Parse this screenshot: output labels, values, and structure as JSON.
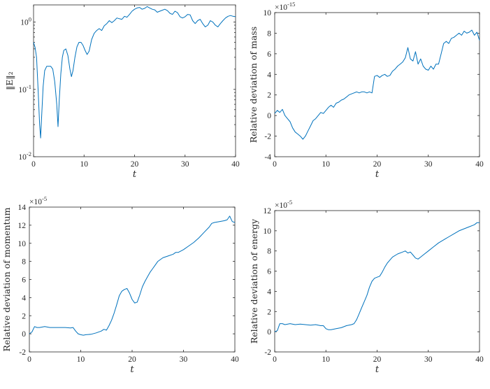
{
  "chart_data": [
    {
      "type": "line",
      "name": "E-norm",
      "ylabel": "‖E‖₂",
      "xlabel": "t",
      "yscale": "log",
      "xlim": [
        0,
        40
      ],
      "ylim": [
        0.01,
        1.8
      ],
      "xticks": [
        0,
        10,
        20,
        30,
        40
      ],
      "yticks": [
        {
          "v": 0.01,
          "base": "10",
          "exp": "-2"
        },
        {
          "v": 0.1,
          "base": "10",
          "exp": "-1"
        },
        {
          "v": 1,
          "base": "10",
          "exp": "0"
        }
      ],
      "exponent": "",
      "color": "#0072bd",
      "points": [
        [
          0,
          0.5
        ],
        [
          0.3,
          0.42
        ],
        [
          0.6,
          0.3
        ],
        [
          0.9,
          0.1
        ],
        [
          1.2,
          0.03
        ],
        [
          1.4,
          0.019
        ],
        [
          1.6,
          0.04
        ],
        [
          1.9,
          0.11
        ],
        [
          2.2,
          0.19
        ],
        [
          2.6,
          0.22
        ],
        [
          3.0,
          0.22
        ],
        [
          3.4,
          0.22
        ],
        [
          3.8,
          0.2
        ],
        [
          4.2,
          0.13
        ],
        [
          4.6,
          0.06
        ],
        [
          4.85,
          0.028
        ],
        [
          5.1,
          0.07
        ],
        [
          5.4,
          0.17
        ],
        [
          5.7,
          0.3
        ],
        [
          6.0,
          0.38
        ],
        [
          6.4,
          0.4
        ],
        [
          6.8,
          0.32
        ],
        [
          7.2,
          0.2
        ],
        [
          7.5,
          0.155
        ],
        [
          7.8,
          0.19
        ],
        [
          8.2,
          0.3
        ],
        [
          8.6,
          0.43
        ],
        [
          9.0,
          0.5
        ],
        [
          9.4,
          0.5
        ],
        [
          9.8,
          0.45
        ],
        [
          10.2,
          0.38
        ],
        [
          10.6,
          0.33
        ],
        [
          11.0,
          0.37
        ],
        [
          11.5,
          0.55
        ],
        [
          12.0,
          0.68
        ],
        [
          12.5,
          0.75
        ],
        [
          13.0,
          0.8
        ],
        [
          13.5,
          0.75
        ],
        [
          14.0,
          0.88
        ],
        [
          14.5,
          0.95
        ],
        [
          15.0,
          1.05
        ],
        [
          15.5,
          0.98
        ],
        [
          16.0,
          1.05
        ],
        [
          16.5,
          1.15
        ],
        [
          17.0,
          1.12
        ],
        [
          17.5,
          1.1
        ],
        [
          18.0,
          1.22
        ],
        [
          18.5,
          1.18
        ],
        [
          19.0,
          1.3
        ],
        [
          19.5,
          1.45
        ],
        [
          20.0,
          1.55
        ],
        [
          20.5,
          1.62
        ],
        [
          21.0,
          1.65
        ],
        [
          21.5,
          1.55
        ],
        [
          22.0,
          1.6
        ],
        [
          22.5,
          1.7
        ],
        [
          23.0,
          1.62
        ],
        [
          23.5,
          1.55
        ],
        [
          24.0,
          1.52
        ],
        [
          24.5,
          1.4
        ],
        [
          25.0,
          1.45
        ],
        [
          25.5,
          1.5
        ],
        [
          26.0,
          1.55
        ],
        [
          26.5,
          1.48
        ],
        [
          27.0,
          1.35
        ],
        [
          27.5,
          1.3
        ],
        [
          28.0,
          1.45
        ],
        [
          28.5,
          1.38
        ],
        [
          29.0,
          1.2
        ],
        [
          29.5,
          1.15
        ],
        [
          30.0,
          1.2
        ],
        [
          30.5,
          1.3
        ],
        [
          31.0,
          1.28
        ],
        [
          31.5,
          1.05
        ],
        [
          32.0,
          0.95
        ],
        [
          32.5,
          1.05
        ],
        [
          33.0,
          1.1
        ],
        [
          33.5,
          0.95
        ],
        [
          34.0,
          0.85
        ],
        [
          34.5,
          0.9
        ],
        [
          35.0,
          1.05
        ],
        [
          35.5,
          1.0
        ],
        [
          36.0,
          0.9
        ],
        [
          36.5,
          0.85
        ],
        [
          37.0,
          0.95
        ],
        [
          37.5,
          1.05
        ],
        [
          38.0,
          1.15
        ],
        [
          38.5,
          1.22
        ],
        [
          39.0,
          1.25
        ],
        [
          39.5,
          1.22
        ],
        [
          40.0,
          1.2
        ]
      ]
    },
    {
      "type": "line",
      "name": "mass",
      "ylabel": "Relative deviation of mass",
      "xlabel": "t",
      "yscale": "linear",
      "xlim": [
        0,
        40
      ],
      "ylim": [
        -4,
        10
      ],
      "xticks": [
        0,
        10,
        20,
        30,
        40
      ],
      "yticks": [
        -4,
        -2,
        0,
        2,
        4,
        6,
        8,
        10
      ],
      "exponent": "-15",
      "color": "#0072bd",
      "points": [
        [
          0,
          0.2
        ],
        [
          0.5,
          0.5
        ],
        [
          1.0,
          0.3
        ],
        [
          1.5,
          0.6
        ],
        [
          2.0,
          0.0
        ],
        [
          2.5,
          -0.3
        ],
        [
          3.0,
          -0.6
        ],
        [
          3.5,
          -1.2
        ],
        [
          4.0,
          -1.6
        ],
        [
          4.5,
          -1.8
        ],
        [
          5.0,
          -2.0
        ],
        [
          5.5,
          -2.3
        ],
        [
          6.0,
          -2.0
        ],
        [
          6.5,
          -1.5
        ],
        [
          7.0,
          -1.0
        ],
        [
          7.5,
          -0.5
        ],
        [
          8.0,
          -0.3
        ],
        [
          8.5,
          0.0
        ],
        [
          9.0,
          0.3
        ],
        [
          9.5,
          0.2
        ],
        [
          10.0,
          0.5
        ],
        [
          10.5,
          0.8
        ],
        [
          11.0,
          1.0
        ],
        [
          11.5,
          0.8
        ],
        [
          12.0,
          1.2
        ],
        [
          12.5,
          1.3
        ],
        [
          13.0,
          1.5
        ],
        [
          13.5,
          1.6
        ],
        [
          14.0,
          1.8
        ],
        [
          14.5,
          2.0
        ],
        [
          15.0,
          2.1
        ],
        [
          15.5,
          2.2
        ],
        [
          16.0,
          2.3
        ],
        [
          16.5,
          2.2
        ],
        [
          17.0,
          2.3
        ],
        [
          17.5,
          2.3
        ],
        [
          18.0,
          2.2
        ],
        [
          18.5,
          2.3
        ],
        [
          19.0,
          2.2
        ],
        [
          19.5,
          3.8
        ],
        [
          20.0,
          3.9
        ],
        [
          20.5,
          3.7
        ],
        [
          21.0,
          3.9
        ],
        [
          21.5,
          4.0
        ],
        [
          22.0,
          3.8
        ],
        [
          22.5,
          3.9
        ],
        [
          23.0,
          4.3
        ],
        [
          23.5,
          4.5
        ],
        [
          24.0,
          4.8
        ],
        [
          24.5,
          5.0
        ],
        [
          25.0,
          5.2
        ],
        [
          25.5,
          5.6
        ],
        [
          26.0,
          6.6
        ],
        [
          26.5,
          5.5
        ],
        [
          27.0,
          5.3
        ],
        [
          27.5,
          6.2
        ],
        [
          28.0,
          5.0
        ],
        [
          28.5,
          5.5
        ],
        [
          29.0,
          4.8
        ],
        [
          29.5,
          4.5
        ],
        [
          30.0,
          4.4
        ],
        [
          30.5,
          4.8
        ],
        [
          31.0,
          4.5
        ],
        [
          31.5,
          5.0
        ],
        [
          32.0,
          5.0
        ],
        [
          32.5,
          6.0
        ],
        [
          33.0,
          7.0
        ],
        [
          33.5,
          7.2
        ],
        [
          34.0,
          7.0
        ],
        [
          34.5,
          7.5
        ],
        [
          35.0,
          7.6
        ],
        [
          35.5,
          7.8
        ],
        [
          36.0,
          8.0
        ],
        [
          36.5,
          7.8
        ],
        [
          37.0,
          8.2
        ],
        [
          37.5,
          8.0
        ],
        [
          38.0,
          8.1
        ],
        [
          38.5,
          8.3
        ],
        [
          39.0,
          7.8
        ],
        [
          39.5,
          8.1
        ],
        [
          40.0,
          7.3
        ]
      ]
    },
    {
      "type": "line",
      "name": "momentum",
      "ylabel": "Relative deviation of momentum",
      "xlabel": "t",
      "yscale": "linear",
      "xlim": [
        0,
        40
      ],
      "ylim": [
        -2,
        14
      ],
      "xticks": [
        0,
        10,
        20,
        30,
        40
      ],
      "yticks": [
        -2,
        0,
        2,
        4,
        6,
        8,
        10,
        12,
        14
      ],
      "exponent": "-5",
      "color": "#0072bd",
      "points": [
        [
          0,
          0.0
        ],
        [
          0.5,
          0.2
        ],
        [
          1.0,
          0.8
        ],
        [
          1.5,
          0.7
        ],
        [
          2.0,
          0.7
        ],
        [
          3.0,
          0.8
        ],
        [
          4.0,
          0.7
        ],
        [
          5.0,
          0.7
        ],
        [
          6.0,
          0.7
        ],
        [
          7.0,
          0.7
        ],
        [
          8.0,
          0.65
        ],
        [
          8.5,
          0.7
        ],
        [
          9.0,
          0.3
        ],
        [
          9.5,
          0.0
        ],
        [
          10.0,
          -0.1
        ],
        [
          10.5,
          -0.15
        ],
        [
          11.0,
          -0.1
        ],
        [
          12.0,
          -0.05
        ],
        [
          13.0,
          0.1
        ],
        [
          14.0,
          0.3
        ],
        [
          14.5,
          0.5
        ],
        [
          15.0,
          0.4
        ],
        [
          15.5,
          0.9
        ],
        [
          16.0,
          1.5
        ],
        [
          16.5,
          2.3
        ],
        [
          17.0,
          3.2
        ],
        [
          17.5,
          4.2
        ],
        [
          18.0,
          4.7
        ],
        [
          18.5,
          4.9
        ],
        [
          19.0,
          5.0
        ],
        [
          19.5,
          4.5
        ],
        [
          20.0,
          3.8
        ],
        [
          20.5,
          3.4
        ],
        [
          21.0,
          3.5
        ],
        [
          21.5,
          4.3
        ],
        [
          22.0,
          5.2
        ],
        [
          22.5,
          5.8
        ],
        [
          23.0,
          6.3
        ],
        [
          23.5,
          6.8
        ],
        [
          24.0,
          7.2
        ],
        [
          24.5,
          7.6
        ],
        [
          25.0,
          8.0
        ],
        [
          25.5,
          8.2
        ],
        [
          26.0,
          8.4
        ],
        [
          27.0,
          8.6
        ],
        [
          28.0,
          8.8
        ],
        [
          28.5,
          9.0
        ],
        [
          29.0,
          9.0
        ],
        [
          30.0,
          9.3
        ],
        [
          31.0,
          9.7
        ],
        [
          32.0,
          10.1
        ],
        [
          33.0,
          10.6
        ],
        [
          34.0,
          11.2
        ],
        [
          35.0,
          11.8
        ],
        [
          35.5,
          12.2
        ],
        [
          36.0,
          12.3
        ],
        [
          37.0,
          12.4
        ],
        [
          38.0,
          12.5
        ],
        [
          38.5,
          12.6
        ],
        [
          39.0,
          13.0
        ],
        [
          39.5,
          12.4
        ],
        [
          40.0,
          12.3
        ]
      ]
    },
    {
      "type": "line",
      "name": "energy",
      "ylabel": "Relative deviation of energy",
      "xlabel": "t",
      "yscale": "linear",
      "xlim": [
        0,
        40
      ],
      "ylim": [
        -2,
        12
      ],
      "xticks": [
        0,
        10,
        20,
        30,
        40
      ],
      "yticks": [
        -2,
        0,
        2,
        4,
        6,
        8,
        10,
        12
      ],
      "exponent": "-5",
      "color": "#0072bd",
      "points": [
        [
          0,
          0.0
        ],
        [
          0.5,
          0.1
        ],
        [
          1.0,
          0.8
        ],
        [
          1.5,
          0.8
        ],
        [
          2.0,
          0.7
        ],
        [
          3.0,
          0.8
        ],
        [
          4.0,
          0.7
        ],
        [
          5.0,
          0.75
        ],
        [
          6.0,
          0.7
        ],
        [
          7.0,
          0.65
        ],
        [
          8.0,
          0.7
        ],
        [
          9.0,
          0.6
        ],
        [
          9.5,
          0.6
        ],
        [
          10.0,
          0.3
        ],
        [
          10.5,
          0.2
        ],
        [
          11.0,
          0.2
        ],
        [
          12.0,
          0.3
        ],
        [
          13.0,
          0.4
        ],
        [
          14.0,
          0.6
        ],
        [
          15.0,
          0.7
        ],
        [
          15.5,
          0.8
        ],
        [
          16.0,
          1.2
        ],
        [
          16.5,
          1.8
        ],
        [
          17.0,
          2.4
        ],
        [
          17.5,
          3.0
        ],
        [
          18.0,
          3.6
        ],
        [
          18.5,
          4.4
        ],
        [
          19.0,
          5.0
        ],
        [
          19.5,
          5.3
        ],
        [
          20.0,
          5.4
        ],
        [
          20.5,
          5.5
        ],
        [
          21.0,
          5.9
        ],
        [
          21.5,
          6.4
        ],
        [
          22.0,
          6.8
        ],
        [
          22.5,
          7.1
        ],
        [
          23.0,
          7.4
        ],
        [
          24.0,
          7.7
        ],
        [
          25.0,
          7.9
        ],
        [
          25.5,
          8.0
        ],
        [
          26.0,
          7.8
        ],
        [
          26.5,
          7.9
        ],
        [
          27.0,
          7.6
        ],
        [
          27.5,
          7.3
        ],
        [
          28.0,
          7.2
        ],
        [
          28.5,
          7.4
        ],
        [
          29.0,
          7.6
        ],
        [
          30.0,
          8.0
        ],
        [
          31.0,
          8.4
        ],
        [
          32.0,
          8.8
        ],
        [
          33.0,
          9.1
        ],
        [
          34.0,
          9.4
        ],
        [
          35.0,
          9.7
        ],
        [
          36.0,
          10.0
        ],
        [
          37.0,
          10.2
        ],
        [
          38.0,
          10.4
        ],
        [
          39.0,
          10.6
        ],
        [
          39.5,
          10.8
        ],
        [
          40.0,
          10.8
        ]
      ]
    }
  ]
}
